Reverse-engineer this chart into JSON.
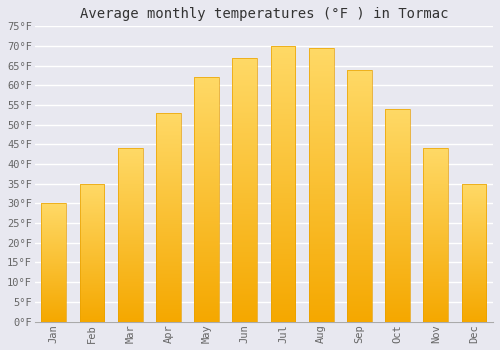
{
  "title": "Average monthly temperatures (°F ) in Tormac",
  "months": [
    "Jan",
    "Feb",
    "Mar",
    "Apr",
    "May",
    "Jun",
    "Jul",
    "Aug",
    "Sep",
    "Oct",
    "Nov",
    "Dec"
  ],
  "temperatures": [
    30,
    35,
    44,
    53,
    62,
    67,
    70,
    69.5,
    64,
    54,
    44,
    35
  ],
  "bar_color_bottom": "#F5A800",
  "bar_color_top": "#FFD966",
  "background_color": "#E8E8F0",
  "grid_color": "#FFFFFF",
  "plot_area_color": "#E8E8F0",
  "ylim": [
    0,
    75
  ],
  "yticks": [
    0,
    5,
    10,
    15,
    20,
    25,
    30,
    35,
    40,
    45,
    50,
    55,
    60,
    65,
    70,
    75
  ],
  "tick_label_color": "#666666",
  "title_color": "#333333",
  "title_fontsize": 10,
  "tick_fontsize": 7.5
}
